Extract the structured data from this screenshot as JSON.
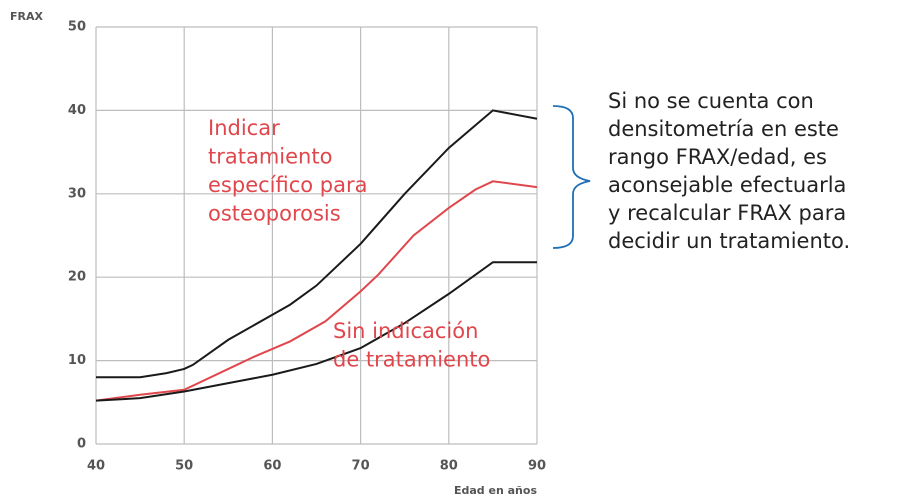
{
  "chart_data": {
    "type": "line",
    "ylabel": "FRAX",
    "xlabel": "Edad en años",
    "xlim": [
      40,
      90
    ],
    "xticks": [
      40,
      50,
      60,
      70,
      80,
      90
    ],
    "ylim": [
      0,
      50
    ],
    "yticks": [
      0,
      10,
      20,
      30,
      40,
      50
    ],
    "grid": true,
    "series": [
      {
        "color": "#1a1a1a",
        "x": [
          40,
          45,
          48,
          50,
          51,
          55,
          60,
          62,
          65,
          70,
          75,
          80,
          85,
          90
        ],
        "values": [
          8,
          8,
          8.5,
          9,
          9.5,
          12.5,
          15.5,
          16.7,
          19,
          24,
          30,
          35.5,
          40,
          39
        ]
      },
      {
        "color": "#e0474c",
        "x": [
          40,
          45,
          50,
          55,
          58,
          62,
          66,
          70,
          72,
          76,
          80,
          83,
          85,
          90
        ],
        "values": [
          5.2,
          5.9,
          6.5,
          9,
          10.5,
          12.3,
          14.7,
          18.3,
          20.3,
          25,
          28.3,
          30.5,
          31.5,
          30.8
        ]
      },
      {
        "color": "#1a1a1a",
        "x": [
          40,
          45,
          50,
          55,
          60,
          65,
          70,
          75,
          80,
          85,
          90
        ],
        "values": [
          5.2,
          5.5,
          6.3,
          7.3,
          8.3,
          9.6,
          11.5,
          14.5,
          18,
          21.8,
          21.8
        ]
      }
    ],
    "annotations": [
      {
        "color": "#e0474c",
        "lines": [
          "Indicar",
          "tratamiento",
          "específico para",
          "osteoporosis"
        ]
      },
      {
        "color": "#e0474c",
        "lines": [
          "Sin indicación",
          "de tratamiento"
        ]
      },
      {
        "color": "#222222",
        "lines": [
          "Si no se cuenta con",
          "densitometría en este",
          "rango FRAX/edad, es",
          "aconsejable efectuarla",
          "y recalcular FRAX para",
          "decidir un tratamiento."
        ]
      }
    ]
  }
}
